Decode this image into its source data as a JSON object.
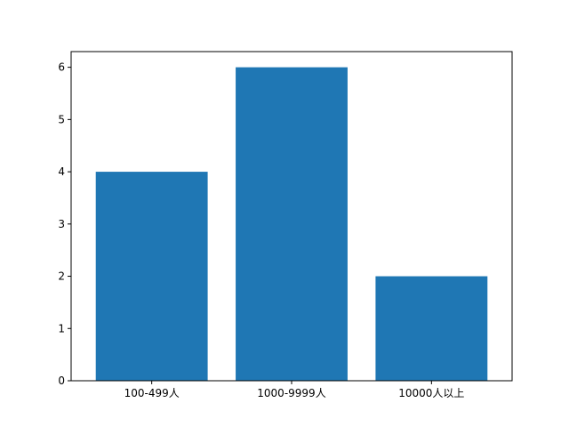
{
  "chart_data": {
    "type": "bar",
    "categories": [
      "100-499人",
      "1000-9999人",
      "10000人以上"
    ],
    "values": [
      4,
      6,
      2
    ],
    "title": "",
    "xlabel": "",
    "ylabel": "",
    "ylim": [
      0,
      6.3
    ],
    "yticks": [
      0,
      1,
      2,
      3,
      4,
      5,
      6
    ],
    "grid": false,
    "legend": "none",
    "colors": {
      "bar": "#1f77b4",
      "axis": "#000000"
    }
  }
}
